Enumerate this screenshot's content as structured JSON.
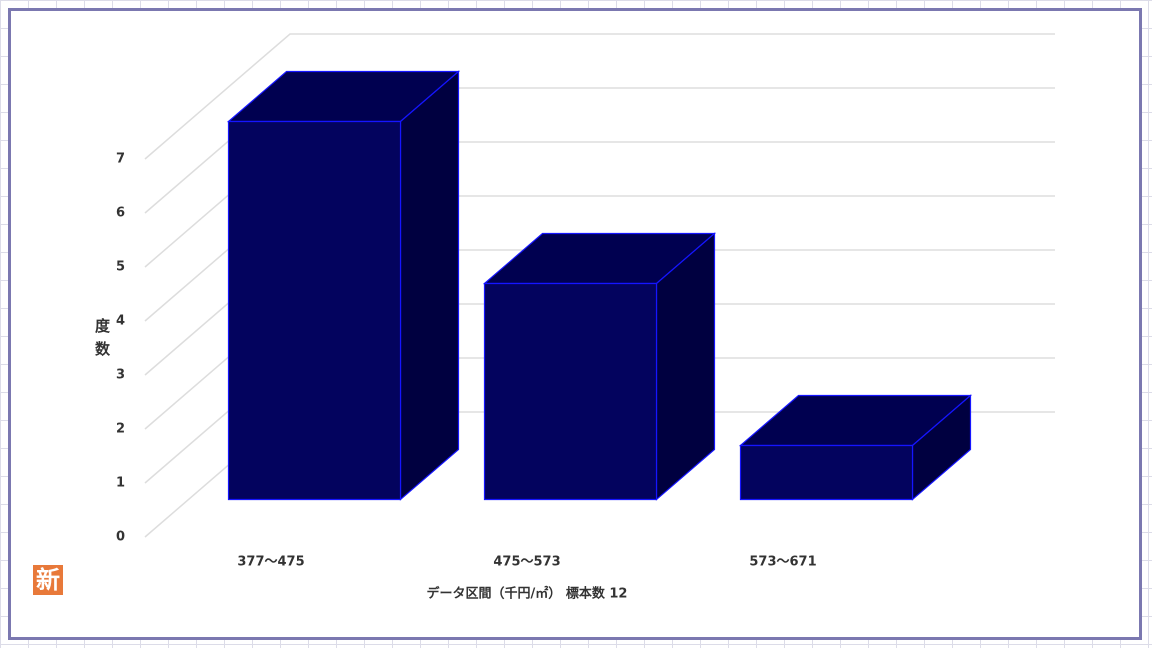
{
  "chart_data": {
    "type": "bar",
    "categories": [
      "377～475",
      "475～573",
      "573～671"
    ],
    "values": [
      7,
      4,
      1
    ],
    "y_label": "度数",
    "x_label": "データ区間（千円/㎡） 標本数 12",
    "ylim": [
      0,
      7
    ],
    "yticks": [
      0,
      1,
      2,
      3,
      4,
      5,
      6,
      7
    ],
    "grid": true,
    "color": "#03035e"
  },
  "badge": "新"
}
